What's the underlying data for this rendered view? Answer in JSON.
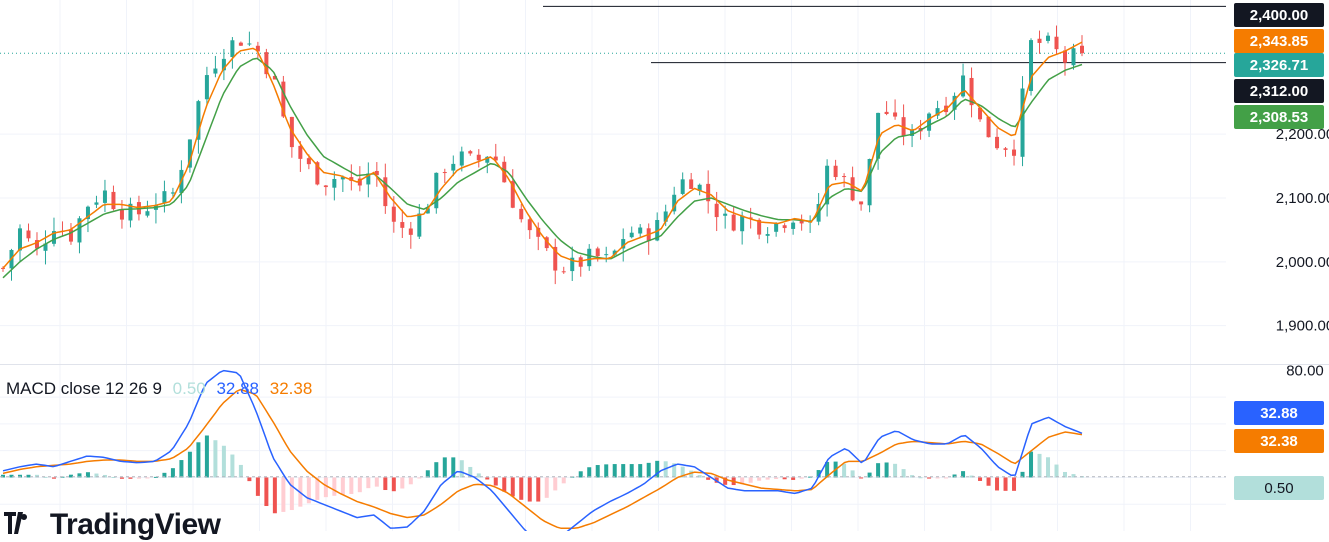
{
  "chart_data": [
    {
      "type": "candlestick",
      "title": "",
      "price_axis": {
        "ticks": [
          "2,200.00",
          "2,100.00",
          "2,000.00",
          "1,900.00"
        ],
        "tick_values": [
          2200,
          2100,
          2000,
          1900
        ],
        "range": [
          1840,
          2410
        ]
      },
      "price_labels": [
        {
          "text": "2,400.00",
          "value": 2400,
          "color": "#131722"
        },
        {
          "text": "2,343.85",
          "value": 2343.85,
          "color": "#f57c00"
        },
        {
          "text": "2,326.71",
          "value": 2326.71,
          "color": "#26a69a"
        },
        {
          "text": "2,312.00",
          "value": 2312,
          "color": "#131722"
        },
        {
          "text": "2,308.53",
          "value": 2308.53,
          "color": "#43a047"
        }
      ],
      "horizontal_lines": [
        2400,
        2312
      ],
      "last_price_line": 2326.71,
      "colors": {
        "up": "#26a69a",
        "down": "#ef5350",
        "ma_fast": "#f57c00",
        "ma_slow": "#43a047"
      },
      "series_anchors": {
        "close": [
          1990,
          2050,
          2015,
          2060,
          2040,
          2090,
          2110,
          2080,
          2075,
          2095,
          2100,
          2190,
          2290,
          2330,
          2350,
          2335,
          2290,
          2185,
          2150,
          2125,
          2135,
          2115,
          2150,
          2060,
          2050,
          2080,
          2145,
          2165,
          2155,
          2175,
          2110,
          2050,
          2020,
          1990,
          1995,
          2010,
          2000,
          2050,
          2040,
          2060,
          2125,
          2130,
          2090,
          2060,
          2070,
          2055,
          2060,
          2075,
          2050,
          2160,
          2120,
          2090,
          2250,
          2210,
          2195,
          2240,
          2250,
          2290,
          2215,
          2185,
          2180,
          2345,
          2340,
          2315,
          2327
        ],
        "ma_fast": [
          1990,
          2020,
          2030,
          2045,
          2050,
          2070,
          2090,
          2090,
          2085,
          2088,
          2095,
          2150,
          2240,
          2300,
          2330,
          2335,
          2280,
          2210,
          2170,
          2140,
          2135,
          2125,
          2140,
          2100,
          2070,
          2075,
          2115,
          2145,
          2155,
          2165,
          2130,
          2080,
          2040,
          2010,
          2000,
          2005,
          2005,
          2030,
          2040,
          2050,
          2095,
          2115,
          2105,
          2080,
          2070,
          2062,
          2060,
          2068,
          2062,
          2120,
          2125,
          2110,
          2200,
          2215,
          2205,
          2225,
          2240,
          2270,
          2240,
          2210,
          2195,
          2290,
          2320,
          2330,
          2344
        ],
        "ma_slow": [
          1975,
          2000,
          2020,
          2035,
          2045,
          2060,
          2075,
          2082,
          2083,
          2085,
          2090,
          2120,
          2190,
          2260,
          2305,
          2320,
          2300,
          2245,
          2200,
          2165,
          2150,
          2135,
          2138,
          2115,
          2090,
          2082,
          2100,
          2125,
          2140,
          2155,
          2140,
          2100,
          2065,
          2035,
          2015,
          2008,
          2004,
          2018,
          2030,
          2040,
          2070,
          2095,
          2100,
          2090,
          2080,
          2072,
          2066,
          2066,
          2063,
          2100,
          2115,
          2110,
          2170,
          2195,
          2200,
          2215,
          2228,
          2255,
          2245,
          2225,
          2210,
          2250,
          2285,
          2300,
          2309
        ]
      },
      "candle_count": 128
    },
    {
      "type": "macd",
      "title_parts": {
        "name": "MACD close 12 26 9",
        "histogram": "0.50",
        "macd": "32.88",
        "signal": "32.38"
      },
      "price_axis": {
        "ticks": [
          "80.00"
        ],
        "tick_values": [
          80
        ],
        "range": [
          -40,
          84
        ]
      },
      "labels": [
        {
          "text": "32.88",
          "value": 32.88,
          "color": "#2962ff"
        },
        {
          "text": "32.38",
          "value": 32.38,
          "color": "#f57c00"
        },
        {
          "text": "0.50",
          "value": 0.5,
          "color": "#b2dfdb"
        }
      ],
      "colors": {
        "macd": "#2962ff",
        "signal": "#f57c00",
        "hist_up_strong": "#26a69a",
        "hist_up_weak": "#b2dfdb",
        "hist_down_strong": "#ef5350",
        "hist_down_weak": "#ffcdd2"
      },
      "macd_anchors": [
        5,
        8,
        10,
        8,
        12,
        16,
        15,
        12,
        11,
        12,
        20,
        40,
        70,
        80,
        78,
        50,
        15,
        -5,
        -15,
        -20,
        -25,
        -30,
        -28,
        -38,
        -37,
        -25,
        -5,
        5,
        0,
        -10,
        -25,
        -40,
        -50,
        -45,
        -35,
        -25,
        -18,
        -12,
        -5,
        5,
        10,
        8,
        0,
        -8,
        -10,
        -10,
        -10,
        -12,
        -8,
        15,
        22,
        10,
        30,
        35,
        28,
        25,
        25,
        32,
        22,
        8,
        0,
        40,
        45,
        38,
        33
      ],
      "signal_anchors": [
        3,
        6,
        8,
        9,
        10,
        12,
        13,
        13,
        12,
        12,
        14,
        22,
        38,
        55,
        66,
        62,
        42,
        20,
        5,
        -5,
        -12,
        -18,
        -22,
        -27,
        -30,
        -28,
        -20,
        -10,
        -5,
        -6,
        -12,
        -22,
        -32,
        -38,
        -38,
        -34,
        -28,
        -22,
        -15,
        -8,
        0,
        4,
        3,
        -2,
        -5,
        -8,
        -9,
        -10,
        -9,
        2,
        12,
        12,
        18,
        25,
        27,
        26,
        25,
        27,
        25,
        18,
        10,
        20,
        30,
        34,
        32
      ]
    }
  ],
  "watermark": {
    "text": "TradingView",
    "logo": "tradingview-logo-icon"
  }
}
